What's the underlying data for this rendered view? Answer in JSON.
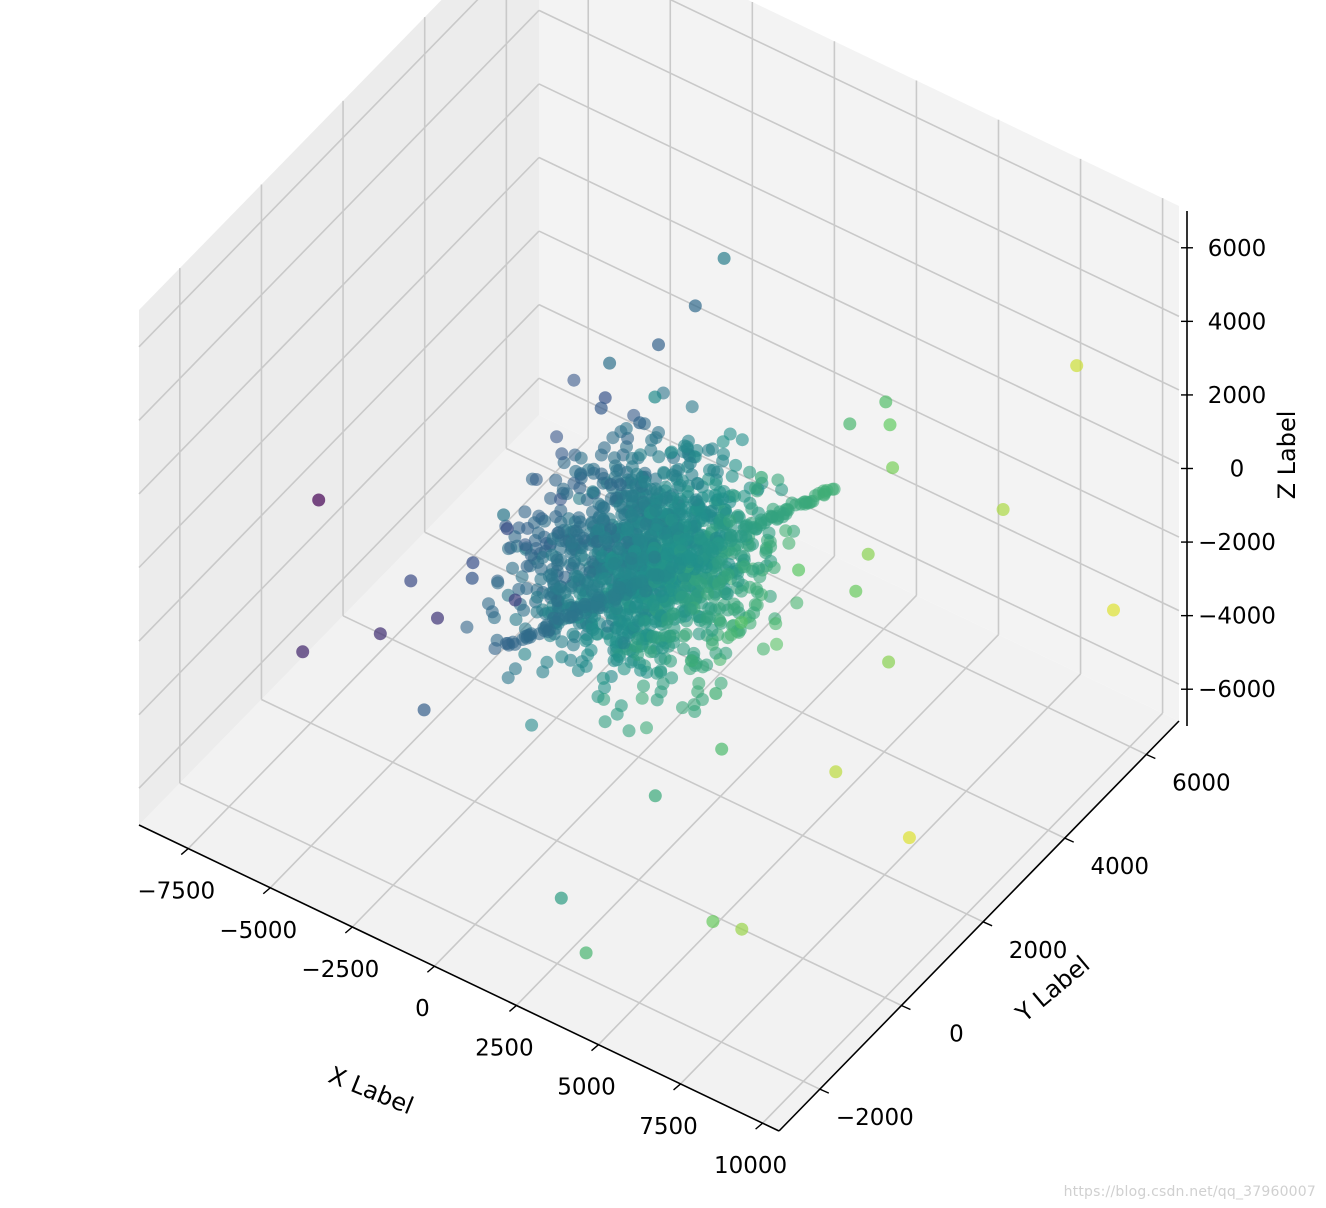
{
  "chart_data": {
    "type": "scatter",
    "projection": "3d",
    "title": "",
    "xlabel": "X Label",
    "ylabel": "Y Label",
    "zlabel": "Z Label",
    "xlim": [
      -9000,
      10500
    ],
    "ylim": [
      -3000,
      6800
    ],
    "zlim": [
      -7000,
      7000
    ],
    "x_ticks": [
      "−7500",
      "−5000",
      "−2500",
      "0",
      "2500",
      "5000",
      "7500",
      "10000"
    ],
    "x_tick_values": [
      -7500,
      -5000,
      -2500,
      0,
      2500,
      5000,
      7500,
      10000
    ],
    "y_ticks": [
      "−2000",
      "0",
      "2000",
      "4000",
      "6000"
    ],
    "y_tick_values": [
      -2000,
      0,
      2000,
      4000,
      6000
    ],
    "z_ticks": [
      "−6000",
      "−4000",
      "−2000",
      "0",
      "2000",
      "4000",
      "6000"
    ],
    "z_tick_values": [
      -6000,
      -4000,
      -2000,
      0,
      2000,
      4000,
      6000
    ],
    "grid": true,
    "colormap": "viridis",
    "color_by": "x",
    "marker_alpha": 0.6,
    "points": [
      [
        -8500,
        1000,
        -2500
      ],
      [
        -6000,
        500,
        -4500
      ],
      [
        -5500,
        1500,
        -5000
      ],
      [
        -5000,
        3000,
        -6000
      ],
      [
        -6500,
        -1000,
        -3500
      ],
      [
        -3500,
        4000,
        -1000
      ],
      [
        -3000,
        3500,
        -500
      ],
      [
        -4000,
        2000,
        -2500
      ],
      [
        -2800,
        -1000,
        -3500
      ],
      [
        -2500,
        4500,
        300
      ],
      [
        -2000,
        5000,
        1000
      ],
      [
        -1500,
        2500,
        2500
      ],
      [
        -1000,
        -500,
        2000
      ],
      [
        -500,
        4500,
        3500
      ],
      [
        500,
        2000,
        3000
      ],
      [
        6500,
        3000,
        2500
      ],
      [
        7000,
        2000,
        1500
      ],
      [
        8000,
        4500,
        300
      ],
      [
        9000,
        5500,
        3500
      ],
      [
        8500,
        0,
        -1500
      ],
      [
        9500,
        6000,
        -3500
      ],
      [
        9500,
        1000,
        -4000
      ],
      [
        7500,
        -1500,
        -4500
      ],
      [
        6000,
        -1000,
        -5500
      ],
      [
        3000,
        0,
        -4500
      ],
      [
        2000,
        -1500,
        -6000
      ],
      [
        4000,
        -2500,
        -5500
      ],
      [
        5000,
        500,
        500
      ],
      [
        5500,
        1500,
        1000
      ],
      [
        6000,
        2500,
        -500
      ],
      [
        7000,
        2500,
        -2000
      ],
      [
        -3200,
        500,
        -1800
      ],
      [
        -3800,
        1000,
        -2200
      ],
      [
        -4200,
        -200,
        -1500
      ],
      [
        -2200,
        3800,
        -900
      ],
      [
        -1800,
        3000,
        -1500
      ],
      [
        4200,
        3800,
        1800
      ],
      [
        4800,
        4200,
        2200
      ],
      [
        5800,
        3500,
        2800
      ],
      [
        3600,
        1000,
        -2600
      ],
      [
        4400,
        500,
        -3200
      ],
      [
        3000,
        2600,
        1200
      ]
    ]
  },
  "watermark": "https://blog.csdn.net/qq_37960007"
}
